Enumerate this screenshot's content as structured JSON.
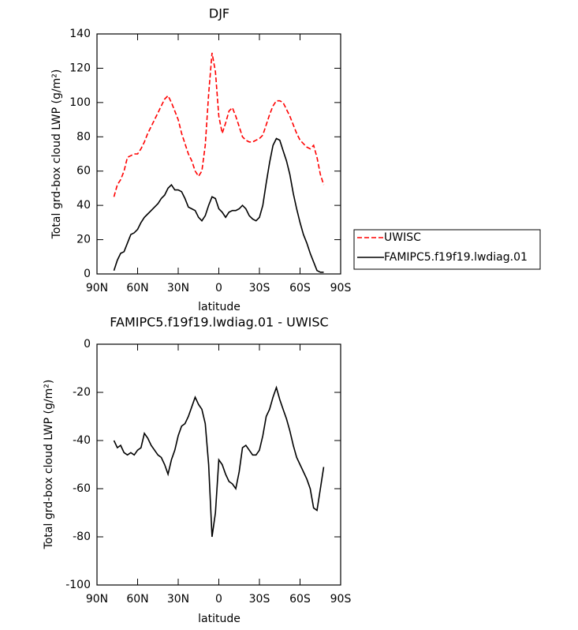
{
  "chart_data": [
    {
      "type": "line",
      "title": "DJF",
      "x_label": "latitude",
      "y_label": "Total grd-box cloud LWP (g/m²)",
      "x": [
        77.5,
        75,
        72.5,
        70,
        67.5,
        65,
        62.5,
        60,
        57.5,
        55,
        52.5,
        50,
        47.5,
        45,
        42.5,
        40,
        37.5,
        35,
        32.5,
        30,
        27.5,
        25,
        22.5,
        20,
        17.5,
        15,
        12.5,
        10,
        7.5,
        5,
        2.5,
        0,
        -2.5,
        -5,
        -7.5,
        -10,
        -12.5,
        -15,
        -17.5,
        -20,
        -22.5,
        -25,
        -27.5,
        -30,
        -32.5,
        -35,
        -37.5,
        -40,
        -42.5,
        -45,
        -47.5,
        -50,
        -52.5,
        -55,
        -57.5,
        -60,
        -62.5,
        -65,
        -67.5,
        -70,
        -72.5,
        -75,
        -77.5
      ],
      "series": [
        {
          "name": "UWISC",
          "color": "#ff0000",
          "line_style": "dashed",
          "values": [
            45,
            52,
            55,
            60,
            68,
            69,
            70,
            70,
            73,
            77,
            82,
            86,
            90,
            94,
            98,
            102,
            104,
            100,
            95,
            90,
            82,
            76,
            70,
            66,
            60,
            57,
            60,
            75,
            105,
            129,
            118,
            92,
            82,
            88,
            95,
            97,
            92,
            86,
            80,
            78,
            77,
            77,
            78,
            79,
            81,
            87,
            93,
            98,
            101,
            101,
            100,
            96,
            92,
            87,
            82,
            78,
            76,
            74,
            73,
            75,
            68,
            58,
            52
          ]
        },
        {
          "name": "FAMIPC5.f19f19.lwdiag.01",
          "color": "#000000",
          "line_style": "solid",
          "values": [
            2,
            8,
            12,
            13,
            18,
            23,
            24,
            26,
            30,
            33,
            35,
            37,
            39,
            41,
            44,
            46,
            50,
            52,
            49,
            49,
            48,
            44,
            39,
            38,
            37,
            33,
            31,
            34,
            40,
            45,
            44,
            38,
            36,
            33,
            36,
            37,
            37,
            38,
            40,
            38,
            34,
            32,
            31,
            33,
            40,
            53,
            65,
            75,
            79,
            78,
            72,
            66,
            58,
            47,
            38,
            30,
            23,
            18,
            12,
            7,
            2,
            1,
            1
          ]
        }
      ],
      "xlim": [
        90,
        -90
      ],
      "xticks": [
        {
          "value": 90,
          "label": "90N"
        },
        {
          "value": 60,
          "label": "60N"
        },
        {
          "value": 30,
          "label": "30N"
        },
        0,
        {
          "value": -30,
          "label": "30S"
        },
        {
          "value": -60,
          "label": "60S"
        },
        {
          "value": -90,
          "label": "90S"
        }
      ],
      "ylim": [
        0,
        140
      ],
      "yticks": [
        0,
        20,
        40,
        60,
        80,
        100,
        120,
        140
      ],
      "legend": "outside-right"
    },
    {
      "type": "line",
      "title": "FAMIPC5.f19f19.lwdiag.01 - UWISC",
      "x_label": "latitude",
      "y_label": "Total grd-box cloud LWP (g/m²)",
      "x": [
        77.5,
        75,
        72.5,
        70,
        67.5,
        65,
        62.5,
        60,
        57.5,
        55,
        52.5,
        50,
        47.5,
        45,
        42.5,
        40,
        37.5,
        35,
        32.5,
        30,
        27.5,
        25,
        22.5,
        20,
        17.5,
        15,
        12.5,
        10,
        7.5,
        5,
        2.5,
        0,
        -2.5,
        -5,
        -7.5,
        -10,
        -12.5,
        -15,
        -17.5,
        -20,
        -22.5,
        -25,
        -27.5,
        -30,
        -32.5,
        -35,
        -37.5,
        -40,
        -42.5,
        -45,
        -47.5,
        -50,
        -52.5,
        -55,
        -57.5,
        -60,
        -62.5,
        -65,
        -67.5,
        -70,
        -72.5,
        -75,
        -77.5
      ],
      "series": [
        {
          "color": "#000000",
          "line_style": "solid",
          "values": [
            -40,
            -43,
            -42,
            -45,
            -46,
            -45,
            -46,
            -44,
            -43,
            -37,
            -39,
            -42,
            -44,
            -46,
            -47,
            -50,
            -54,
            -48,
            -44,
            -38,
            -34,
            -33,
            -30,
            -26,
            -22,
            -25,
            -27,
            -33,
            -50,
            -80,
            -70,
            -48,
            -50,
            -54,
            -57,
            -58,
            -60,
            -53,
            -43,
            -42,
            -44,
            -46,
            -46,
            -44,
            -38,
            -30,
            -27,
            -22,
            -18,
            -23,
            -27,
            -31,
            -36,
            -42,
            -47,
            -50,
            -53,
            -56,
            -60,
            -68,
            -69,
            -60,
            -51
          ]
        }
      ],
      "xlim": [
        90,
        -90
      ],
      "xticks": [
        {
          "value": 90,
          "label": "90N"
        },
        {
          "value": 60,
          "label": "60N"
        },
        {
          "value": 30,
          "label": "30N"
        },
        0,
        {
          "value": -30,
          "label": "30S"
        },
        {
          "value": -60,
          "label": "60S"
        },
        {
          "value": -90,
          "label": "90S"
        }
      ],
      "ylim": [
        -100,
        0
      ],
      "yticks": [
        -100,
        -80,
        -60,
        -40,
        -20,
        0
      ]
    }
  ]
}
